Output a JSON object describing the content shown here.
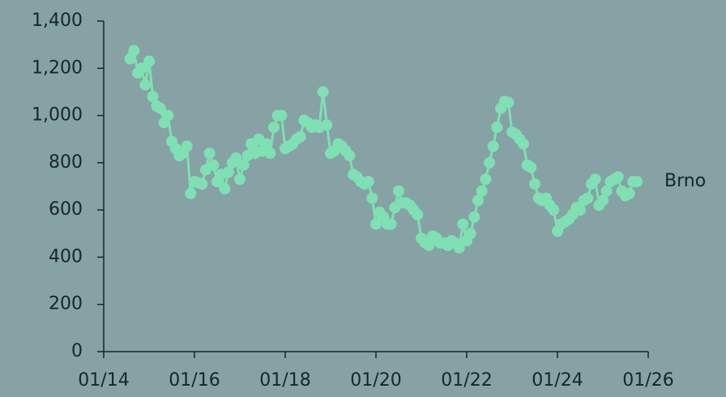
{
  "chart_data": {
    "type": "line",
    "x": [
      "2014-08",
      "2014-09",
      "2014-10",
      "2014-11",
      "2014-12",
      "2015-01",
      "2015-02",
      "2015-03",
      "2015-04",
      "2015-05",
      "2015-06",
      "2015-07",
      "2015-08",
      "2015-09",
      "2015-10",
      "2015-11",
      "2015-12",
      "2016-01",
      "2016-02",
      "2016-03",
      "2016-04",
      "2016-05",
      "2016-06",
      "2016-07",
      "2016-08",
      "2016-09",
      "2016-10",
      "2016-11",
      "2016-12",
      "2017-01",
      "2017-02",
      "2017-03",
      "2017-04",
      "2017-05",
      "2017-06",
      "2017-07",
      "2017-08",
      "2017-09",
      "2017-10",
      "2017-11",
      "2017-12",
      "2018-01",
      "2018-02",
      "2018-03",
      "2018-04",
      "2018-05",
      "2018-06",
      "2018-07",
      "2018-08",
      "2018-09",
      "2018-10",
      "2018-11",
      "2018-12",
      "2019-01",
      "2019-02",
      "2019-03",
      "2019-04",
      "2019-05",
      "2019-06",
      "2019-07",
      "2019-08",
      "2019-09",
      "2019-10",
      "2019-11",
      "2019-12",
      "2020-01",
      "2020-02",
      "2020-03",
      "2020-04",
      "2020-05",
      "2020-06",
      "2020-07",
      "2020-08",
      "2020-09",
      "2020-10",
      "2020-11",
      "2020-12",
      "2021-01",
      "2021-02",
      "2021-03",
      "2021-04",
      "2021-05",
      "2021-06",
      "2021-07",
      "2021-08",
      "2021-09",
      "2021-10",
      "2021-11",
      "2021-12",
      "2022-01",
      "2022-02",
      "2022-03",
      "2022-04",
      "2022-05",
      "2022-06",
      "2022-07",
      "2022-08",
      "2022-09",
      "2022-10",
      "2022-11",
      "2022-12",
      "2023-01",
      "2023-02",
      "2023-03",
      "2023-04",
      "2023-05",
      "2023-06",
      "2023-07",
      "2023-08",
      "2023-09",
      "2023-10",
      "2023-11",
      "2023-12",
      "2024-01",
      "2024-02",
      "2024-03",
      "2024-04",
      "2024-05",
      "2024-06",
      "2024-07",
      "2024-08",
      "2024-09",
      "2024-10",
      "2024-11",
      "2024-12",
      "2025-01",
      "2025-02",
      "2025-03",
      "2025-04",
      "2025-05",
      "2025-06",
      "2025-07",
      "2025-08",
      "2025-09",
      "2025-10"
    ],
    "series": [
      {
        "name": "Brno",
        "color": "#7fe0b3",
        "values": [
          1240,
          1275,
          1180,
          1200,
          1130,
          1230,
          1080,
          1040,
          1030,
          970,
          1000,
          890,
          860,
          830,
          840,
          870,
          670,
          720,
          715,
          710,
          770,
          840,
          790,
          720,
          750,
          690,
          760,
          800,
          820,
          730,
          790,
          830,
          880,
          840,
          900,
          850,
          880,
          840,
          950,
          1000,
          1000,
          860,
          870,
          880,
          900,
          910,
          980,
          970,
          950,
          960,
          950,
          1100,
          960,
          840,
          850,
          880,
          870,
          850,
          830,
          750,
          740,
          720,
          710,
          720,
          650,
          540,
          590,
          570,
          540,
          540,
          610,
          680,
          630,
          630,
          620,
          600,
          580,
          480,
          460,
          450,
          490,
          480,
          460,
          460,
          450,
          470,
          460,
          440,
          540,
          470,
          500,
          570,
          640,
          680,
          730,
          800,
          870,
          950,
          1030,
          1060,
          1055,
          930,
          920,
          900,
          880,
          790,
          780,
          710,
          650,
          640,
          650,
          620,
          600,
          510,
          540,
          550,
          560,
          580,
          610,
          600,
          640,
          650,
          710,
          730,
          620,
          640,
          680,
          720,
          730,
          740,
          680,
          660,
          670,
          720,
          720
        ]
      }
    ],
    "xlim": [
      "2014-01",
      "2026-01"
    ],
    "xticks": [
      {
        "value": "2014-01",
        "label": "01/14"
      },
      {
        "value": "2016-01",
        "label": "01/16"
      },
      {
        "value": "2018-01",
        "label": "01/18"
      },
      {
        "value": "2020-01",
        "label": "01/20"
      },
      {
        "value": "2022-01",
        "label": "01/22"
      },
      {
        "value": "2024-01",
        "label": "01/24"
      },
      {
        "value": "2026-01",
        "label": "01/26"
      }
    ],
    "ylim": [
      0,
      1400
    ],
    "yticks": [
      0,
      200,
      400,
      600,
      800,
      {
        "value": 1000,
        "label": "1,000"
      },
      {
        "value": 1200,
        "label": "1,200"
      },
      {
        "value": 1400,
        "label": "1,400"
      }
    ],
    "grid": false
  }
}
